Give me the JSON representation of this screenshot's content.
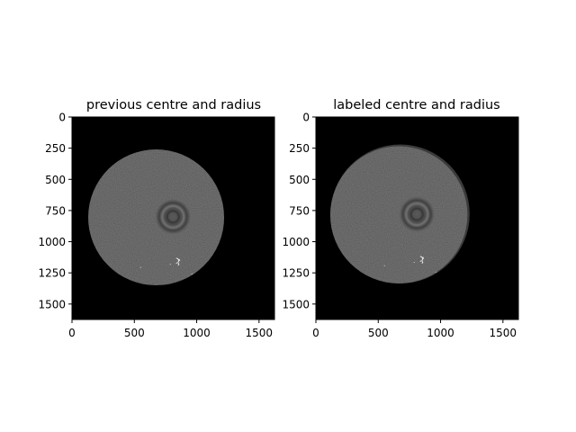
{
  "chart_data": [
    {
      "type": "image",
      "title": "previous centre and radius",
      "xlim": [
        0,
        1624
      ],
      "ylim": [
        1624,
        0
      ],
      "xticks": [
        0,
        500,
        1000,
        1500
      ],
      "yticks": [
        0,
        250,
        500,
        750,
        1000,
        1250,
        1500
      ],
      "xtick_labels": [
        "0",
        "500",
        "1000",
        "1500"
      ],
      "ytick_labels": [
        "0",
        "250",
        "500",
        "750",
        "1000",
        "1250",
        "1500"
      ],
      "disc_center": [
        675,
        805
      ],
      "disc_radius": 545,
      "ring_center": [
        810,
        800
      ],
      "speck_center": [
        850,
        1160
      ],
      "background_color": "#000000",
      "disc_color": "#555555"
    },
    {
      "type": "image",
      "title": "labeled centre and radius",
      "xlim": [
        0,
        1624
      ],
      "ylim": [
        1624,
        0
      ],
      "xticks": [
        0,
        500,
        1000,
        1500
      ],
      "yticks": [
        0,
        250,
        500,
        750,
        1000,
        1250,
        1500
      ],
      "xtick_labels": [
        "0",
        "500",
        "1000",
        "1500"
      ],
      "ytick_labels": [
        "0",
        "250",
        "500",
        "750",
        "1000",
        "1250",
        "1500"
      ],
      "disc_center": [
        665,
        785
      ],
      "disc_radius": 550,
      "ring_center": [
        810,
        780
      ],
      "speck_center": [
        850,
        1145
      ],
      "background_color": "#000000",
      "disc_color": "#555555"
    }
  ]
}
